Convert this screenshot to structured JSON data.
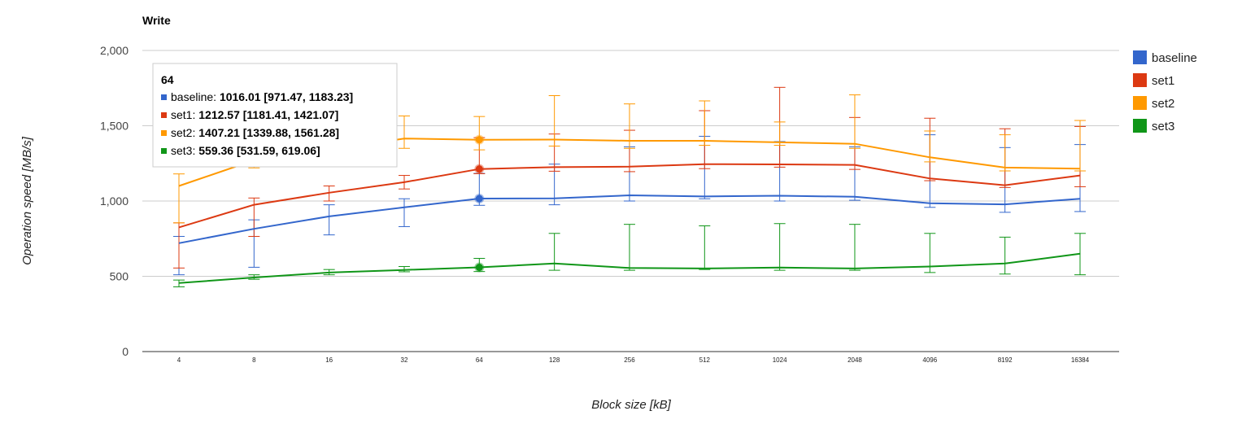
{
  "chart_data": {
    "type": "line",
    "title": "Write",
    "xlabel": "Block size [kB]",
    "ylabel": "Operation speed [MB/s]",
    "ylim": [
      0,
      2000
    ],
    "y_ticks": [
      "0",
      "500",
      "1,000",
      "1,500",
      "2,000"
    ],
    "y_tick_values": [
      0,
      500,
      1000,
      1500,
      2000
    ],
    "grid": true,
    "legend_position": "right",
    "categories": [
      "4",
      "8",
      "16",
      "32",
      "64",
      "128",
      "256",
      "512",
      "1024",
      "2048",
      "4096",
      "8192",
      "16384"
    ],
    "series": [
      {
        "name": "baseline",
        "color": "#3366cc",
        "values": [
          720,
          815,
          898,
          958,
          1016.01,
          1018,
          1038,
          1030,
          1035,
          1028,
          985,
          978,
          1015
        ],
        "lower": [
          510,
          560,
          775,
          830,
          971.47,
          975,
          1000,
          1015,
          1000,
          1005,
          958,
          925,
          930
        ],
        "upper": [
          765,
          875,
          975,
          1015,
          1183.23,
          1245,
          1360,
          1430,
          1395,
          1360,
          1440,
          1355,
          1375
        ]
      },
      {
        "name": "set1",
        "color": "#dc3912",
        "values": [
          825,
          975,
          1055,
          1125,
          1212.57,
          1225,
          1228,
          1245,
          1243,
          1240,
          1150,
          1105,
          1170
        ],
        "lower": [
          555,
          765,
          1000,
          1080,
          1181.41,
          1198,
          1195,
          1215,
          1225,
          1210,
          1135,
          1090,
          1095
        ],
        "upper": [
          855,
          1020,
          1100,
          1170,
          1421.07,
          1445,
          1470,
          1600,
          1755,
          1555,
          1550,
          1480,
          1495
        ]
      },
      {
        "name": "set2",
        "color": "#ff9900",
        "values": [
          1100,
          1270,
          1340,
          1415,
          1407.21,
          1408,
          1400,
          1400,
          1390,
          1380,
          1290,
          1222,
          1215
        ],
        "lower": [
          855,
          1220,
          1300,
          1350,
          1339.88,
          1365,
          1350,
          1370,
          1370,
          1350,
          1260,
          1200,
          1200
        ],
        "upper": [
          1180,
          1300,
          1420,
          1565,
          1561.28,
          1700,
          1645,
          1665,
          1525,
          1705,
          1465,
          1440,
          1535
        ]
      },
      {
        "name": "set3",
        "color": "#109618",
        "values": [
          455,
          492,
          525,
          542,
          559.36,
          585,
          555,
          552,
          558,
          552,
          565,
          585,
          650
        ],
        "lower": [
          430,
          480,
          510,
          530,
          531.59,
          540,
          540,
          545,
          540,
          540,
          525,
          515,
          510
        ],
        "upper": [
          475,
          510,
          545,
          565,
          619.06,
          785,
          845,
          835,
          850,
          845,
          785,
          760,
          785
        ]
      }
    ],
    "tooltip": {
      "category": "64",
      "rows": [
        {
          "name": "baseline:",
          "text": "1016.01 [971.47, 1183.23]",
          "color": "#3366cc"
        },
        {
          "name": "set1:",
          "text": "1212.57 [1181.41, 1421.07]",
          "color": "#dc3912"
        },
        {
          "name": "set2:",
          "text": "1407.21 [1339.88, 1561.28]",
          "color": "#ff9900"
        },
        {
          "name": "set3:",
          "text": "559.36 [531.59, 619.06]",
          "color": "#109618"
        }
      ]
    }
  }
}
